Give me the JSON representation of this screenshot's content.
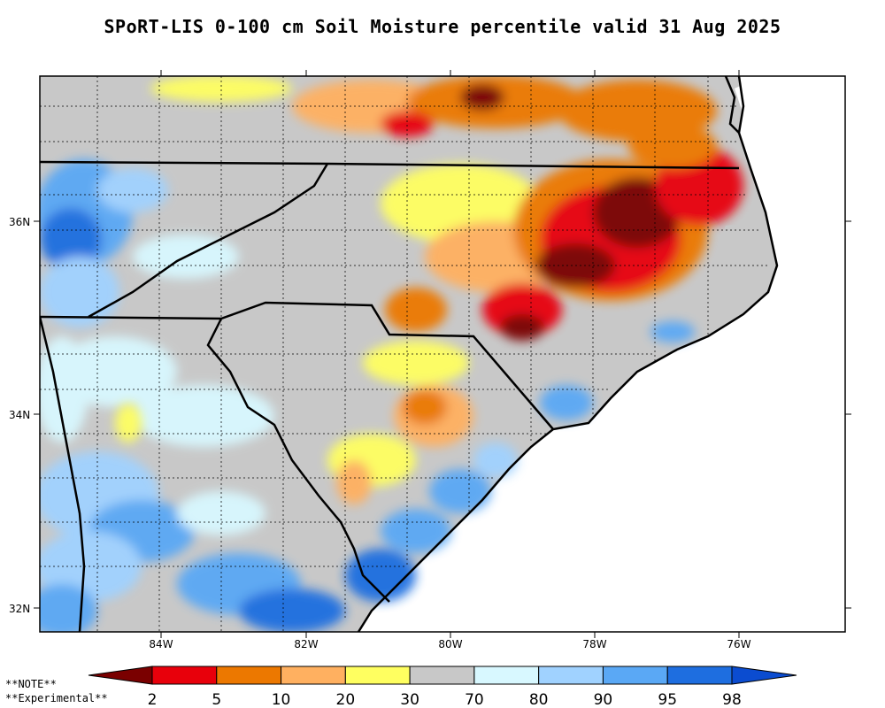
{
  "title": "SPoRT-LIS 0-100 cm Soil Moisture percentile valid 31 Aug 2025",
  "notes": [
    "**NOTE**",
    "**Experimental**"
  ],
  "lat_labels": [
    "36N",
    "34N",
    "32N"
  ],
  "lon_labels": [
    "84W",
    "82W",
    "80W",
    "78W",
    "76W"
  ],
  "colorbar": {
    "labels": [
      "2",
      "5",
      "10",
      "20",
      "30",
      "70",
      "80",
      "90",
      "95",
      "98"
    ],
    "colors": [
      "#7a0000",
      "#e8000b",
      "#ec7800",
      "#ffb060",
      "#ffff60",
      "#c8c8c8",
      "#d8f8ff",
      "#a0d2ff",
      "#5aa8f5",
      "#1e6ee0",
      "#0b4cd0"
    ]
  },
  "icons": {
    "map": "choropleth-map"
  }
}
